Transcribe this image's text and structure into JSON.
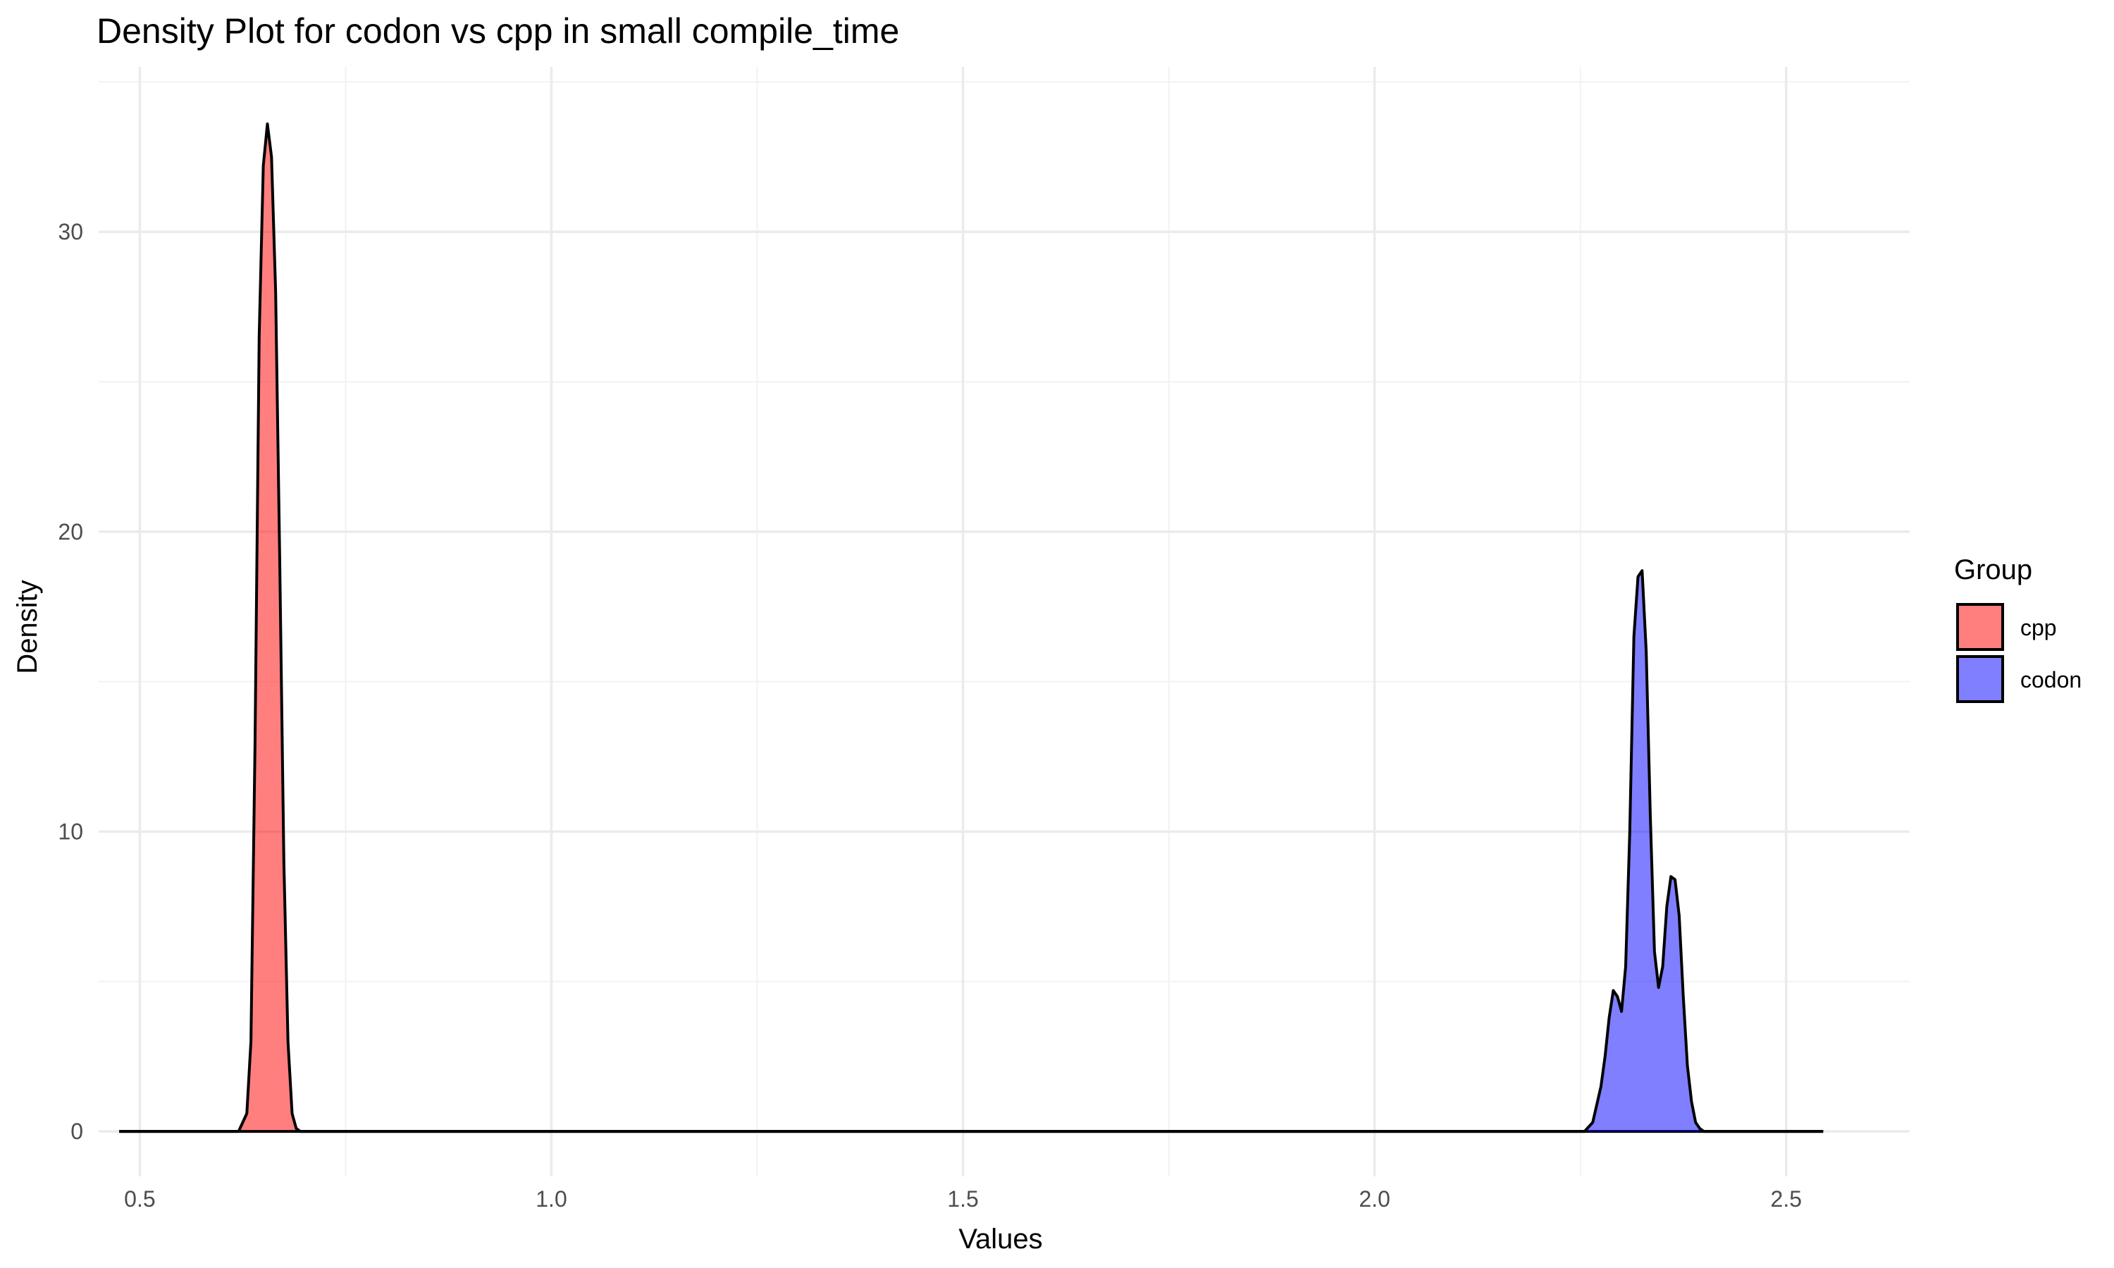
{
  "chart_data": {
    "type": "area",
    "title": "Density Plot for codon vs cpp in small compile_time",
    "xlabel": "Values",
    "ylabel": "Density",
    "xlim": [
      0.45,
      2.65
    ],
    "ylim": [
      -1.5,
      35.5
    ],
    "x_ticks": [
      0.5,
      1.0,
      1.5,
      2.0,
      2.5
    ],
    "x_tick_labels": [
      "0.5",
      "1.0",
      "1.5",
      "2.0",
      "2.5"
    ],
    "y_ticks": [
      0,
      10,
      20,
      30
    ],
    "y_tick_labels": [
      "0",
      "10",
      "20",
      "30"
    ],
    "grid": true,
    "legend": {
      "title": "Group",
      "position": "right"
    },
    "series": [
      {
        "name": "cpp",
        "color": "#FF0000",
        "x": [
          0.475,
          0.62,
          0.63,
          0.635,
          0.64,
          0.645,
          0.65,
          0.655,
          0.66,
          0.665,
          0.67,
          0.675,
          0.68,
          0.685,
          0.69,
          0.695,
          0.7,
          2.545
        ],
        "y": [
          0,
          0,
          0.6,
          3.0,
          13.0,
          26.5,
          32.2,
          33.6,
          32.5,
          28.0,
          19.0,
          9.0,
          3.0,
          0.6,
          0.1,
          0,
          0,
          0
        ]
      },
      {
        "name": "codon",
        "color": "#0000FF",
        "x": [
          0.475,
          2.255,
          2.265,
          2.275,
          2.28,
          2.285,
          2.29,
          2.295,
          2.3,
          2.305,
          2.31,
          2.315,
          2.32,
          2.325,
          2.33,
          2.335,
          2.34,
          2.345,
          2.35,
          2.355,
          2.36,
          2.365,
          2.37,
          2.375,
          2.38,
          2.385,
          2.39,
          2.395,
          2.4,
          2.41,
          2.545
        ],
        "y": [
          0,
          0,
          0.3,
          1.5,
          2.5,
          3.8,
          4.7,
          4.5,
          4.0,
          5.5,
          10.0,
          16.5,
          18.5,
          18.7,
          16.0,
          10.5,
          6.0,
          4.8,
          5.5,
          7.5,
          8.5,
          8.4,
          7.2,
          4.5,
          2.2,
          1.0,
          0.3,
          0.1,
          0,
          0,
          0
        ]
      }
    ]
  }
}
